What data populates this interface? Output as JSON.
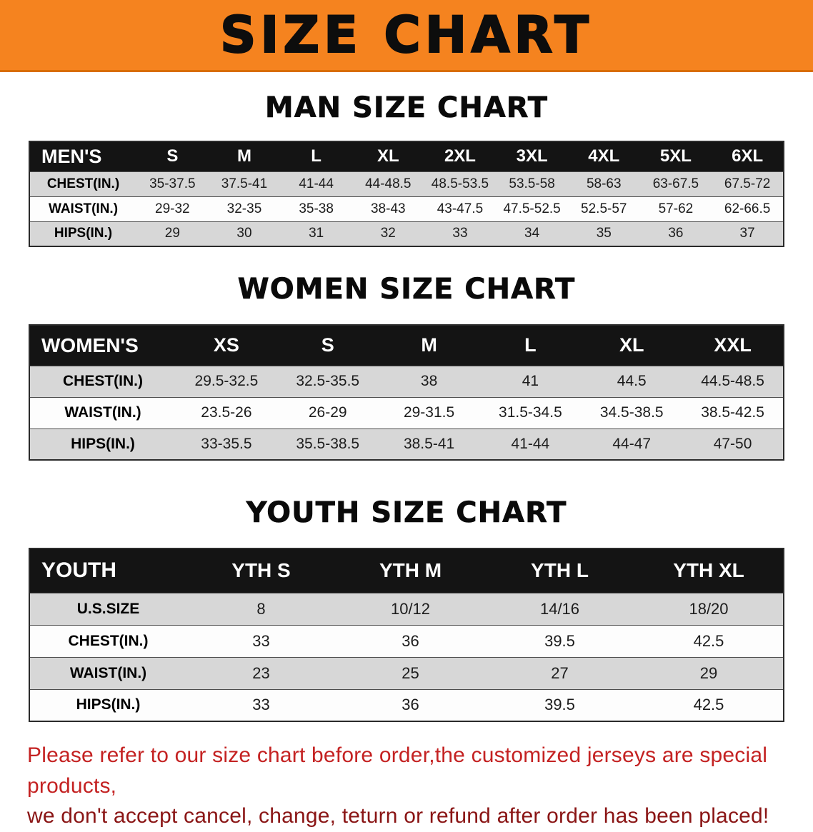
{
  "banner": {
    "title": "SIZE CHART"
  },
  "sections": [
    {
      "heading": "MAN SIZE CHART",
      "table": {
        "header": [
          "MEN'S",
          "S",
          "M",
          "L",
          "XL",
          "2XL",
          "3XL",
          "4XL",
          "5XL",
          "6XL"
        ],
        "rows": [
          [
            "CHEST(IN.)",
            "35-37.5",
            "37.5-41",
            "41-44",
            "44-48.5",
            "48.5-53.5",
            "53.5-58",
            "58-63",
            "63-67.5",
            "67.5-72"
          ],
          [
            "WAIST(IN.)",
            "29-32",
            "32-35",
            "35-38",
            "38-43",
            "43-47.5",
            "47.5-52.5",
            "52.5-57",
            "57-62",
            "62-66.5"
          ],
          [
            "HIPS(IN.)",
            "29",
            "30",
            "31",
            "32",
            "33",
            "34",
            "35",
            "36",
            "37"
          ]
        ]
      }
    },
    {
      "heading": "WOMEN SIZE CHART",
      "table": {
        "header": [
          "WOMEN'S",
          "XS",
          "S",
          "M",
          "L",
          "XL",
          "XXL"
        ],
        "rows": [
          [
            "CHEST(IN.)",
            "29.5-32.5",
            "32.5-35.5",
            "38",
            "41",
            "44.5",
            "44.5-48.5"
          ],
          [
            "WAIST(IN.)",
            "23.5-26",
            "26-29",
            "29-31.5",
            "31.5-34.5",
            "34.5-38.5",
            "38.5-42.5"
          ],
          [
            "HIPS(IN.)",
            "33-35.5",
            "35.5-38.5",
            "38.5-41",
            "41-44",
            "44-47",
            "47-50"
          ]
        ]
      }
    },
    {
      "heading": "YOUTH SIZE CHART",
      "table": {
        "header": [
          "YOUTH",
          "YTH S",
          "YTH M",
          "YTH L",
          "YTH XL"
        ],
        "rows": [
          [
            "U.S.SIZE",
            "8",
            "10/12",
            "14/16",
            "18/20"
          ],
          [
            "CHEST(IN.)",
            "33",
            "36",
            "39.5",
            "42.5"
          ],
          [
            "WAIST(IN.)",
            "23",
            "25",
            "27",
            "29"
          ],
          [
            "HIPS(IN.)",
            "33",
            "36",
            "39.5",
            "42.5"
          ]
        ]
      }
    }
  ],
  "footer": {
    "line1": "Please refer to our size chart before order,the customized jerseys are special products,",
    "line2": "we don't accept cancel, change, teturn or refund after order has been placed!"
  },
  "colors": {
    "banner_bg": "#f5831f",
    "table_header_bg": "#141414",
    "row_stripe": "#d7d7d7",
    "footer_red": "#c42222",
    "footer_dark_red": "#8a1515"
  }
}
